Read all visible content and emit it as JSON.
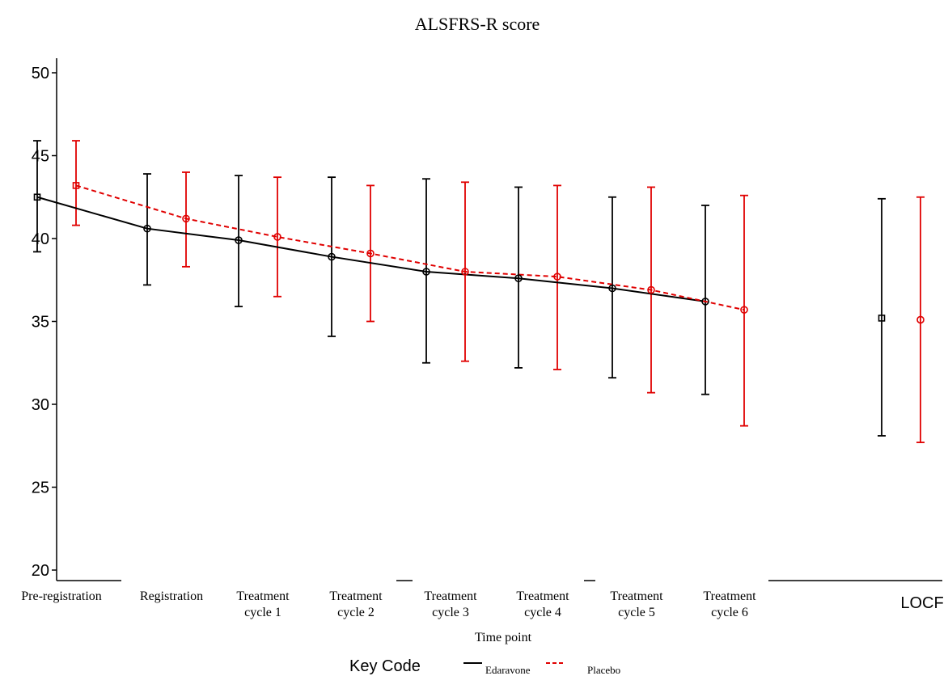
{
  "chart_data": {
    "type": "line",
    "title": "ALSFRS-R score",
    "xlabel": "Time point",
    "ylabel": "",
    "ylim": [
      20,
      50
    ],
    "yticks": [
      20,
      25,
      30,
      35,
      40,
      45,
      50
    ],
    "categories": [
      [
        "Pre-registration"
      ],
      [
        "Registration"
      ],
      [
        "Treatment",
        "cycle 1"
      ],
      [
        "Treatment",
        "cycle 2"
      ],
      [
        "Treatment",
        "cycle 3"
      ],
      [
        "Treatment",
        "cycle 4"
      ],
      [
        "Treatment",
        "cycle 5"
      ],
      [
        "Treatment",
        "cycle 6"
      ],
      [
        "LOCF"
      ]
    ],
    "series": [
      {
        "name": "Edaravone",
        "color": "#000000",
        "line": "solid",
        "values": [
          42.5,
          40.6,
          39.9,
          38.9,
          38.0,
          37.6,
          37.0,
          36.2,
          35.2
        ],
        "lower": [
          39.2,
          37.2,
          35.9,
          34.1,
          32.5,
          32.2,
          31.6,
          30.6,
          28.1
        ],
        "upper": [
          45.9,
          43.9,
          43.8,
          43.7,
          43.6,
          43.1,
          42.5,
          42.0,
          42.4
        ]
      },
      {
        "name": "Placebo",
        "color": "#e00000",
        "line": "dashed",
        "values": [
          43.2,
          41.2,
          40.1,
          39.1,
          38.0,
          37.7,
          36.9,
          35.7,
          35.1
        ],
        "lower": [
          40.8,
          38.3,
          36.5,
          35.0,
          32.6,
          32.1,
          30.7,
          28.7,
          27.7
        ],
        "upper": [
          45.9,
          44.0,
          43.7,
          43.2,
          43.4,
          43.2,
          43.1,
          42.6,
          42.5
        ]
      }
    ],
    "legend": {
      "title": "Key Code",
      "position": "bottom"
    }
  }
}
